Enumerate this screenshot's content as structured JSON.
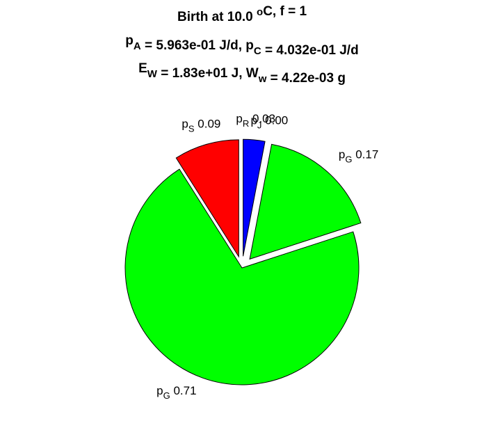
{
  "chart_data": {
    "type": "pie",
    "title": [
      [
        {
          "t": "Birth at 10.0 "
        },
        {
          "t": "o",
          "s": "sup"
        },
        {
          "t": "C, f = 1"
        }
      ],
      [
        {
          "t": "p"
        },
        {
          "t": "A",
          "s": "sub"
        },
        {
          "t": " = 5.963e-01 J/d, p"
        },
        {
          "t": "C",
          "s": "sub"
        },
        {
          "t": " = 4.032e-01 J/d"
        }
      ],
      [
        {
          "t": "E"
        },
        {
          "t": "W",
          "s": "sub"
        },
        {
          "t": " = 1.83e+01 J, W"
        },
        {
          "t": "w",
          "s": "sub"
        },
        {
          "t": " = 4.22e-03 g"
        }
      ]
    ],
    "categories": [
      {
        "main": "p",
        "sub": "R"
      },
      {
        "main": "p",
        "sub": "J"
      },
      {
        "main": "p",
        "sub": "G"
      },
      {
        "main": "p",
        "sub": "G"
      },
      {
        "main": "p",
        "sub": "S"
      }
    ],
    "values": [
      0.03,
      0.0,
      0.17,
      0.71,
      0.09
    ],
    "value_labels": [
      "0.03",
      "0.00",
      "0.17",
      "0.71",
      "0.09"
    ],
    "colors": [
      "#0000ff",
      "#ff00ff",
      "#00ff00",
      "#00ff00",
      "#ff0000"
    ],
    "explode": [
      true,
      true,
      true,
      false,
      true
    ]
  }
}
